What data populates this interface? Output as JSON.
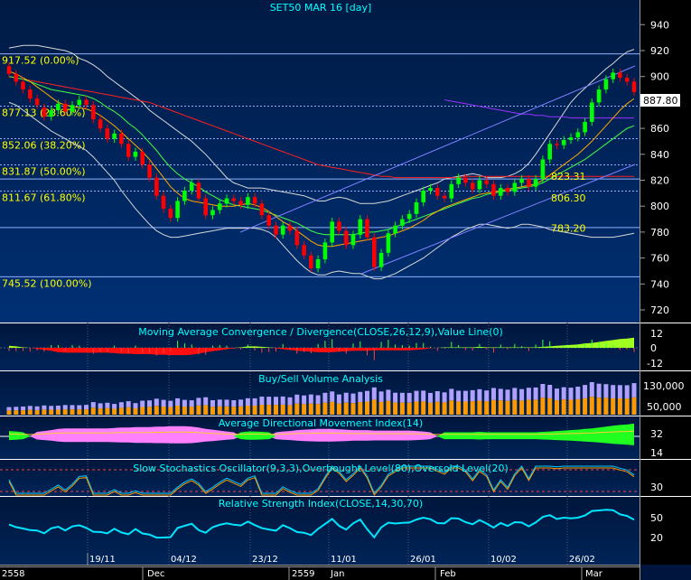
{
  "chart_data": [
    {
      "type": "candlestick",
      "title": "SET50 MAR 16   [day]",
      "ylim": [
        710,
        950
      ],
      "y_ticks": [
        720,
        740,
        760,
        780,
        800,
        820,
        840,
        860,
        880,
        900,
        920,
        940
      ],
      "y_tick_labels": [
        "720",
        "740",
        "760",
        "780",
        "800",
        "820",
        "840",
        "860",
        "880",
        "900",
        "920",
        "940"
      ],
      "last_price_label": "887.80",
      "last_price": 887.8,
      "fibonacci": [
        {
          "label": "917.52 (0.00%)",
          "value": 917.52
        },
        {
          "label": "877.13 (23.60%)",
          "value": 877.13
        },
        {
          "label": "852.06 (38.20%)",
          "value": 852.06
        },
        {
          "label": "831.87 (50.00%)",
          "value": 831.87
        },
        {
          "label": "811.67 (61.80%)",
          "value": 811.67
        },
        {
          "label": "745.52 (100.00%)",
          "value": 745.52
        }
      ],
      "annotations": [
        {
          "label": "823.31",
          "value": 823.31
        },
        {
          "label": "806.30",
          "value": 806.3
        },
        {
          "label": "783.20",
          "value": 783.2
        }
      ],
      "close": [
        902,
        896,
        890,
        883,
        878,
        869,
        874,
        879,
        873,
        878,
        882,
        878,
        867,
        860,
        852,
        856,
        848,
        838,
        842,
        832,
        822,
        808,
        798,
        791,
        804,
        812,
        818,
        806,
        793,
        797,
        802,
        806,
        804,
        801,
        807,
        802,
        793,
        785,
        778,
        785,
        781,
        770,
        762,
        752,
        759,
        772,
        788,
        781,
        770,
        778,
        790,
        776,
        753,
        764,
        779,
        785,
        790,
        794,
        803,
        812,
        814,
        808,
        806,
        817,
        822,
        818,
        813,
        820,
        817,
        808,
        814,
        811,
        818,
        821,
        815,
        821,
        836,
        848,
        847,
        851,
        853,
        857,
        865,
        880,
        890,
        898,
        903,
        899,
        896,
        888
      ],
      "open": [
        908,
        902,
        896,
        890,
        883,
        876,
        869,
        874,
        879,
        873,
        878,
        882,
        878,
        867,
        860,
        852,
        856,
        848,
        838,
        842,
        832,
        822,
        808,
        798,
        791,
        804,
        812,
        818,
        806,
        793,
        797,
        802,
        806,
        804,
        801,
        807,
        802,
        793,
        785,
        778,
        785,
        781,
        770,
        762,
        752,
        759,
        772,
        788,
        781,
        770,
        778,
        790,
        776,
        753,
        764,
        779,
        785,
        790,
        794,
        803,
        812,
        814,
        808,
        806,
        817,
        822,
        818,
        813,
        820,
        817,
        808,
        814,
        811,
        818,
        821,
        815,
        821,
        836,
        848,
        847,
        851,
        853,
        857,
        865,
        880,
        890,
        898,
        903,
        899,
        896
      ],
      "sma_green": [
        900,
        899,
        898,
        896,
        894,
        892,
        890,
        889,
        888,
        887,
        886,
        885,
        883,
        880,
        876,
        873,
        869,
        864,
        860,
        855,
        849,
        843,
        836,
        830,
        825,
        821,
        818,
        815,
        811,
        808,
        805,
        803,
        801,
        800,
        799,
        798,
        797,
        795,
        793,
        791,
        789,
        787,
        784,
        781,
        779,
        778,
        778,
        778,
        778,
        778,
        779,
        780,
        780,
        781,
        782,
        784,
        786,
        788,
        790,
        792,
        794,
        796,
        798,
        800,
        802,
        804,
        806,
        807,
        809,
        810,
        811,
        812,
        813,
        814,
        815,
        816,
        818,
        821,
        824,
        827,
        830,
        833,
        836,
        840,
        844,
        848,
        852,
        856,
        860,
        862
      ],
      "sma_orange": [
        904,
        902,
        899,
        896,
        892,
        888,
        884,
        880,
        878,
        877,
        876,
        875,
        873,
        870,
        866,
        862,
        857,
        852,
        847,
        842,
        836,
        829,
        822,
        815,
        810,
        806,
        804,
        803,
        802,
        801,
        800,
        800,
        800,
        801,
        802,
        801,
        799,
        796,
        792,
        788,
        785,
        781,
        777,
        773,
        770,
        769,
        769,
        770,
        771,
        772,
        773,
        774,
        775,
        776,
        777,
        779,
        781,
        783,
        786,
        789,
        793,
        796,
        799,
        801,
        803,
        805,
        807,
        809,
        810,
        811,
        812,
        813,
        814,
        815,
        816,
        817,
        820,
        824,
        828,
        832,
        836,
        840,
        845,
        850,
        856,
        862,
        868,
        874,
        879,
        883
      ],
      "sma_red": [
        900,
        899,
        898,
        897,
        896,
        895,
        894,
        893,
        892,
        891,
        890,
        889,
        888,
        887,
        886,
        885,
        884,
        883,
        882,
        881,
        880,
        878,
        876,
        874,
        872,
        870,
        868,
        866,
        864,
        862,
        860,
        858,
        856,
        854,
        852,
        850,
        848,
        846,
        844,
        842,
        840,
        838,
        836,
        834,
        832,
        831,
        830,
        829,
        828,
        827,
        826,
        825,
        824,
        823,
        823,
        822,
        822,
        822,
        822,
        822,
        822,
        822,
        822,
        822,
        822,
        823,
        823,
        823,
        823,
        823,
        823,
        823,
        823,
        823,
        823,
        823,
        823,
        823,
        823,
        823,
        823,
        823,
        823,
        823,
        823,
        823,
        823,
        823,
        823,
        823
      ],
      "sma_purple": [
        null,
        null,
        null,
        null,
        null,
        null,
        null,
        null,
        null,
        null,
        null,
        null,
        null,
        null,
        null,
        null,
        null,
        null,
        null,
        null,
        null,
        null,
        null,
        null,
        null,
        null,
        null,
        null,
        null,
        null,
        null,
        null,
        null,
        null,
        null,
        null,
        null,
        null,
        null,
        null,
        null,
        null,
        null,
        null,
        null,
        null,
        null,
        null,
        null,
        null,
        null,
        null,
        null,
        null,
        null,
        null,
        null,
        null,
        null,
        null,
        null,
        null,
        882,
        881,
        880,
        879,
        878,
        877,
        876,
        875,
        874,
        873,
        872,
        871,
        871,
        870,
        870,
        869,
        869,
        869,
        868,
        868,
        868,
        868,
        868,
        868,
        868,
        868,
        868,
        868
      ],
      "bb_upper": [
        922,
        923,
        924,
        924,
        924,
        923,
        922,
        921,
        920,
        918,
        914,
        912,
        909,
        905,
        900,
        896,
        892,
        888,
        884,
        880,
        874,
        870,
        866,
        862,
        858,
        854,
        850,
        845,
        840,
        834,
        828,
        822,
        818,
        816,
        814,
        814,
        814,
        813,
        812,
        811,
        810,
        809,
        808,
        806,
        804,
        804,
        806,
        807,
        806,
        804,
        802,
        802,
        802,
        803,
        804,
        806,
        808,
        810,
        812,
        814,
        816,
        818,
        821,
        822,
        823,
        824,
        825,
        824,
        822,
        822,
        822,
        823,
        825,
        828,
        833,
        840,
        848,
        856,
        864,
        872,
        880,
        886,
        891,
        896,
        901,
        906,
        910,
        915,
        919,
        921
      ],
      "bb_lower": [
        880,
        878,
        874,
        870,
        866,
        862,
        858,
        855,
        852,
        849,
        846,
        843,
        838,
        832,
        826,
        820,
        812,
        805,
        798,
        792,
        786,
        781,
        778,
        776,
        776,
        777,
        778,
        779,
        780,
        781,
        782,
        783,
        783,
        783,
        783,
        783,
        782,
        780,
        776,
        770,
        764,
        758,
        753,
        749,
        747,
        747,
        749,
        750,
        749,
        748,
        748,
        746,
        744,
        744,
        746,
        748,
        751,
        754,
        757,
        760,
        764,
        768,
        772,
        776,
        779,
        782,
        784,
        786,
        786,
        785,
        784,
        783,
        784,
        786,
        786,
        785,
        784,
        782,
        781,
        780,
        779,
        778,
        777,
        776,
        776,
        776,
        776,
        777,
        778,
        779
      ]
    },
    {
      "type": "histogram",
      "title": "Moving Average Convergence / Divergence(CLOSE,26,12,9),Value Line(0)",
      "y_tick_labels": [
        "12",
        "0",
        "-12"
      ]
    },
    {
      "type": "bar",
      "title": "Buy/Sell Volume Analysis",
      "y_tick_labels": [
        "130,000",
        "50,000"
      ]
    },
    {
      "type": "area",
      "title": "Average Directional Movement Index(14)",
      "y_tick_labels": [
        "32",
        "14"
      ]
    },
    {
      "type": "line",
      "title": "Slow Stochastics Oscillator(9,3,3),Overbought Level(80),Oversold Level(20)",
      "y_tick_labels": [
        "30"
      ]
    },
    {
      "type": "line",
      "title": "Relative Strength Index(CLOSE,14,30,70)",
      "y_tick_labels": [
        "50",
        "20"
      ]
    }
  ],
  "x_axis": {
    "upper_labels": [
      "19/11",
      "04/12",
      "23/12",
      "11/01",
      "26/01",
      "10/02",
      "26/02"
    ],
    "lower_labels": [
      "2558",
      "Dec",
      "2559",
      "Jan",
      "Feb",
      "Mar"
    ]
  },
  "colors": {
    "background_top": "#00204e",
    "background_bottom": "#002b66",
    "bull_candle": "#00ff00",
    "bear_candle": "#ff0000",
    "title_text": "#00ffff",
    "fib_text": "#ffff00",
    "axis_text": "#ffffff"
  }
}
